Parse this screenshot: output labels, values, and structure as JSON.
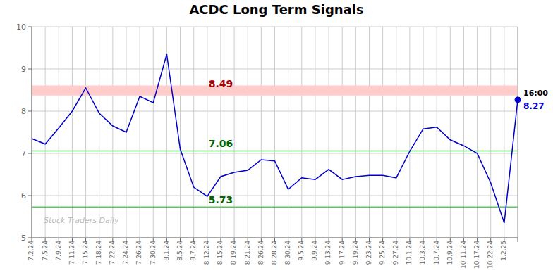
{
  "chart_data": {
    "type": "line",
    "title": "ACDC Long Term Signals",
    "categories": [
      "7.2.24",
      "7.5.24",
      "7.9.24",
      "7.11.24",
      "7.15.24",
      "7.18.24",
      "7.22.24",
      "7.24.24",
      "7.26.24",
      "7.30.24",
      "8.1.24",
      "8.5.24",
      "8.7.24",
      "8.12.24",
      "8.15.24",
      "8.19.24",
      "8.21.24",
      "8.26.24",
      "8.28.24",
      "8.30.24",
      "9.5.24",
      "9.9.24",
      "9.13.24",
      "9.17.24",
      "9.19.24",
      "9.23.24",
      "9.25.24",
      "9.27.24",
      "10.1.24",
      "10.3.24",
      "10.7.24",
      "10.9.24",
      "10.11.24",
      "10.17.24",
      "10.22.24",
      "1.2.25",
      null
    ],
    "values": [
      7.35,
      7.22,
      7.6,
      8.0,
      8.55,
      7.95,
      7.65,
      7.5,
      8.35,
      8.2,
      9.35,
      7.1,
      6.2,
      5.98,
      6.45,
      6.55,
      6.6,
      6.85,
      6.82,
      6.15,
      6.42,
      6.38,
      6.62,
      6.38,
      6.45,
      6.48,
      6.48,
      6.42,
      7.05,
      7.58,
      7.62,
      7.32,
      7.18,
      7.0,
      6.3,
      5.35,
      8.27
    ],
    "color": "#0000cc",
    "ylim": [
      5.0,
      10.0
    ],
    "yticks": [
      5,
      6,
      7,
      8,
      9,
      10
    ],
    "grid": true,
    "bands": [
      {
        "from": 8.37,
        "to": 8.61,
        "color": "#ffcccc",
        "label": "8.49",
        "label_y": 8.49,
        "label_color": "#aa0000"
      }
    ],
    "lines": [
      {
        "y": 7.06,
        "color": "#55cc55",
        "label": "7.06",
        "label_color": "#006600"
      },
      {
        "y": 5.73,
        "color": "#55cc55",
        "label": "5.73",
        "label_color": "#006600"
      }
    ],
    "last_point": {
      "label_top": "16:00",
      "label_bottom": "8.27"
    },
    "watermark": "Stock Traders Daily",
    "watermark_color": "#bbbbbb"
  }
}
